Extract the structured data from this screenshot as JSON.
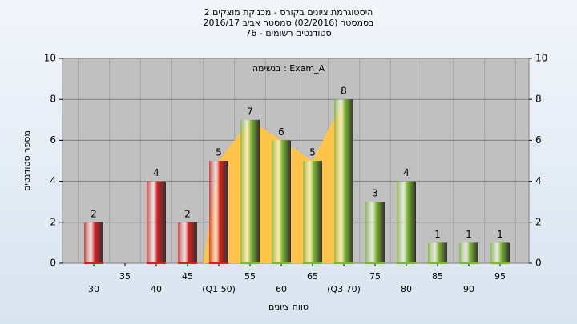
{
  "chart_data": {
    "type": "bar",
    "title": "היסטוגרמת ציונים בקורס - מכניקת מוצקים 2",
    "subtitle": "בסמסטר  (02/2016)  סמסטר אביב 2016/17",
    "subtitle2": "סטודנטים רשומים - 76",
    "annotation": "בנשימה : Exam_A",
    "y_label": "מספר סטודנטים",
    "x_label": "טווח ציונים",
    "categories": [
      "30",
      "35",
      "40",
      "45",
      "(Q1 50)",
      "55",
      "60",
      "65",
      "(Q3 70)",
      "75",
      "80",
      "85",
      "90",
      "95"
    ],
    "values": [
      2,
      null,
      4,
      2,
      5,
      7,
      6,
      5,
      8,
      3,
      4,
      1,
      1,
      1
    ],
    "colors": [
      "#d42020",
      "#d42020",
      "#d42020",
      "#d42020",
      "#d42020",
      "#7cb830",
      "#7cb830",
      "#7cb830",
      "#7cb830",
      "#7cb830",
      "#7cb830",
      "#7cb830",
      "#7cb830",
      "#7cb830"
    ],
    "area_color": "#ffc44a",
    "ylim": [
      0,
      10
    ],
    "yticks": [
      0,
      2,
      4,
      6,
      8,
      10
    ],
    "y2lim": [
      0,
      10
    ],
    "y2ticks": [
      0,
      2,
      4,
      6,
      8,
      10
    ],
    "grid": true
  }
}
